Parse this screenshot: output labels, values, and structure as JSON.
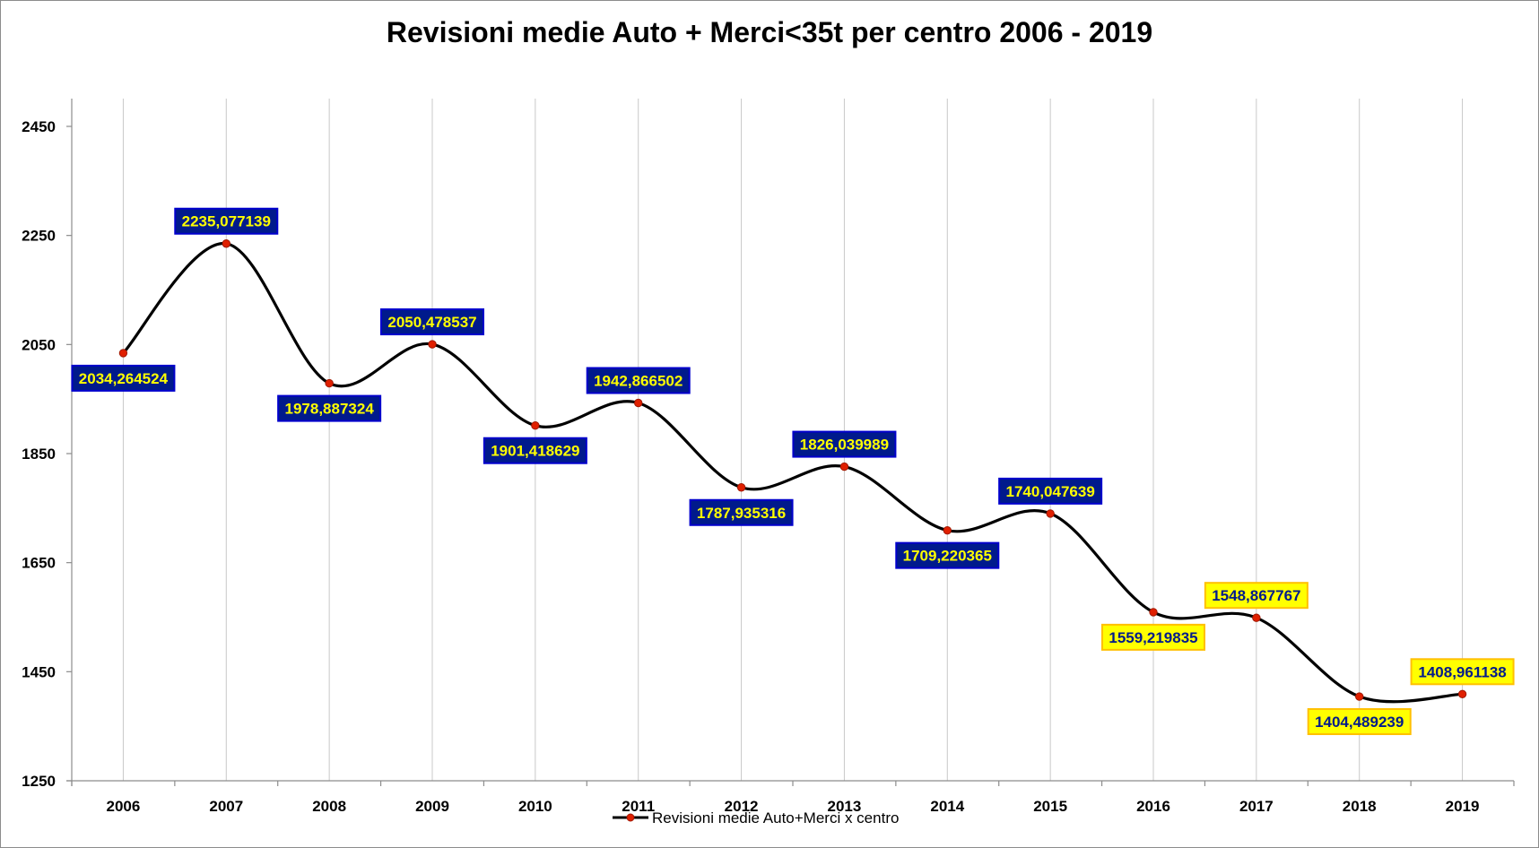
{
  "chart_data": {
    "type": "line",
    "title": "Revisioni medie Auto + Merci<35t per centro 2006 - 2019",
    "xlabel": "",
    "ylabel": "",
    "categories": [
      "2006",
      "2007",
      "2008",
      "2009",
      "2010",
      "2011",
      "2012",
      "2013",
      "2014",
      "2015",
      "2016",
      "2017",
      "2018",
      "2019"
    ],
    "series": [
      {
        "name": "Revisioni medie Auto+Merci x centro",
        "values": [
          2034.264524,
          2235.077139,
          1978.887324,
          2050.478537,
          1901.418629,
          1942.866502,
          1787.935316,
          1826.039989,
          1709.220365,
          1740.047639,
          1559.219835,
          1548.867767,
          1404.489239,
          1408.961138
        ],
        "labels": [
          "2034,264524",
          "2235,077139",
          "1978,887324",
          "2050,478537",
          "1901,418629",
          "1942,866502",
          "1787,935316",
          "1826,039989",
          "1709,220365",
          "1740,047639",
          "1559,219835",
          "1548,867767",
          "1404,489239",
          "1408,961138"
        ],
        "label_position": [
          "below",
          "above",
          "below",
          "above",
          "below",
          "above",
          "below",
          "above",
          "below",
          "above",
          "below",
          "above",
          "below",
          "above"
        ],
        "label_style": [
          "blue",
          "blue",
          "blue",
          "blue",
          "blue",
          "blue",
          "blue",
          "blue",
          "blue",
          "blue",
          "yellow",
          "yellow",
          "yellow",
          "yellow"
        ]
      }
    ],
    "ylim": [
      1250,
      2450
    ],
    "yticks": [
      1250,
      1450,
      1650,
      1850,
      2050,
      2250,
      2450
    ],
    "grid": "vertical",
    "smooth": true,
    "legend": "bottom",
    "colors": {
      "line": "#000000",
      "marker": "#e02000",
      "marker_edge": "#a01800",
      "label_blue_bg": "#001a8c",
      "label_blue_text": "#ffff00",
      "label_yellow_bg": "#ffff00",
      "label_yellow_text": "#001a8c",
      "label_yellow_border": "#ffc000",
      "gridline": "#c8c8c8",
      "axis": "#8c8c8c"
    }
  }
}
